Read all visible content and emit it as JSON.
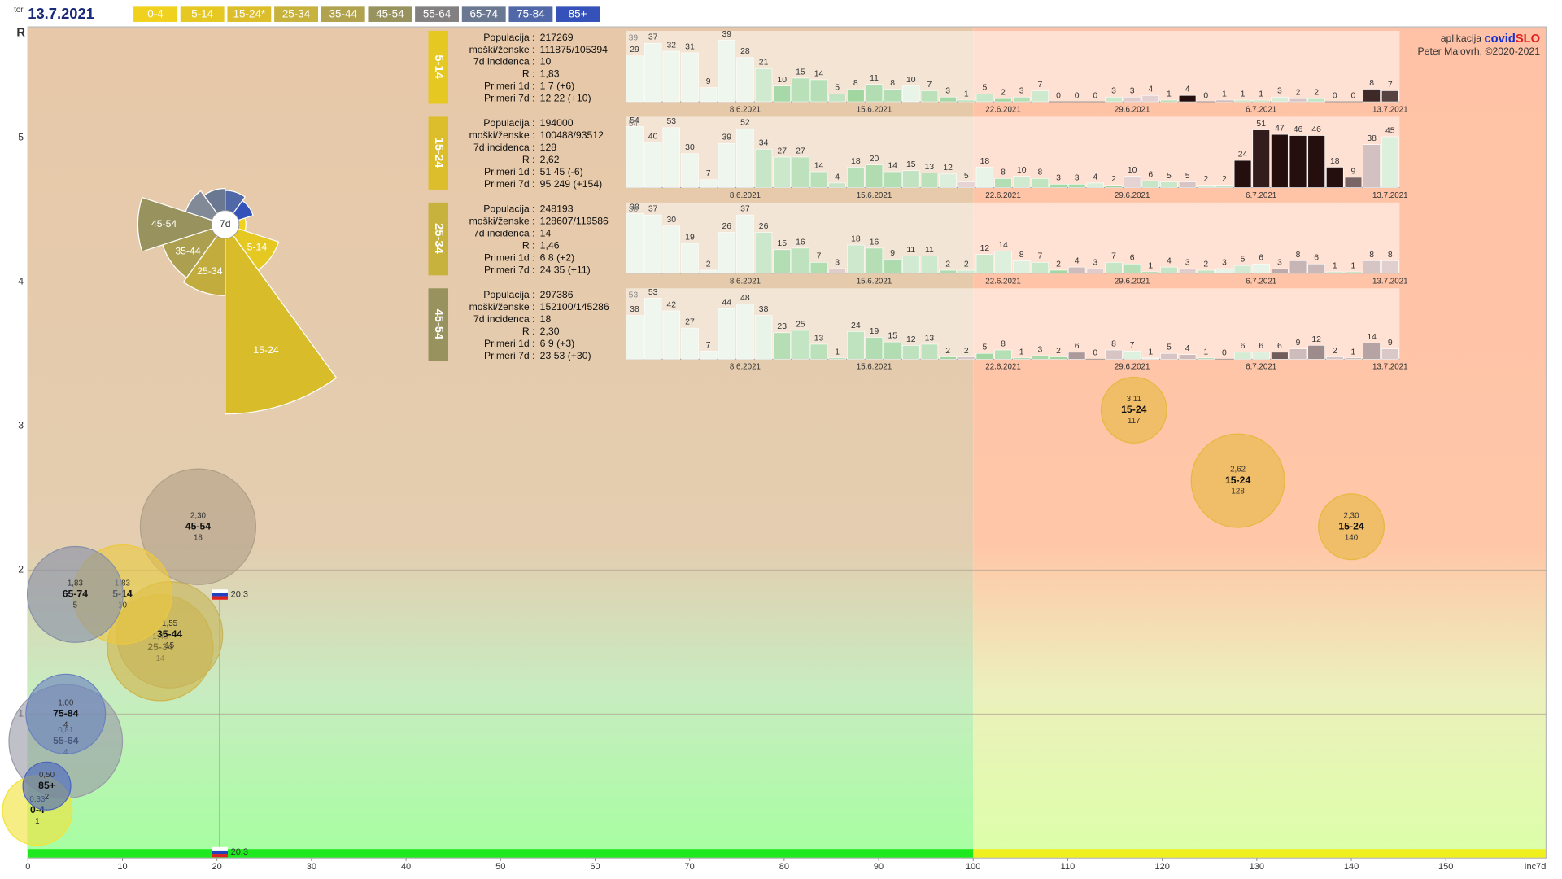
{
  "header": {
    "weekday": "tor",
    "date": "13.7.2021",
    "groups": [
      {
        "label": "0-4",
        "color": "#f0d21e"
      },
      {
        "label": "5-14",
        "color": "#e6c822"
      },
      {
        "label": "15-24*",
        "color": "#dcbe2c"
      },
      {
        "label": "25-34",
        "color": "#c8b23e"
      },
      {
        "label": "35-44",
        "color": "#b0a24e"
      },
      {
        "label": "45-54",
        "color": "#98925e"
      },
      {
        "label": "55-64",
        "color": "#828080"
      },
      {
        "label": "65-74",
        "color": "#6a7892"
      },
      {
        "label": "75-84",
        "color": "#5068a8"
      },
      {
        "label": "85+",
        "color": "#3452ba"
      }
    ]
  },
  "credits": {
    "prefix": "aplikacija",
    "name_a": "covid",
    "name_b": "SLO",
    "author": "Peter Malovrh, ©2020-2021"
  },
  "chart_data": [
    {
      "type": "bubble",
      "xlabel": "Inc7d",
      "ylabel": "R",
      "xlim": [
        0,
        160.6
      ],
      "ylim": [
        0,
        5.77
      ],
      "xticks": [
        0,
        10,
        20,
        30,
        40,
        50,
        60,
        70,
        80,
        90,
        100,
        110,
        120,
        130,
        140,
        150
      ],
      "yticks": [
        1,
        2,
        3,
        4,
        5
      ],
      "grid": true,
      "threshold": 100,
      "national": {
        "x": 20.3,
        "y": 1.83,
        "label": "20,3"
      },
      "series": [
        {
          "name": "45-54",
          "color": "#b0a088",
          "x": [
            18
          ],
          "values": [
            2.3
          ],
          "value_labels": [
            "2,30"
          ],
          "sizes": [
            297386
          ]
        },
        {
          "name": "55-64",
          "color": "#9a9aa8",
          "x": [
            4
          ],
          "values": [
            0.81
          ],
          "value_labels": [
            "0,81"
          ],
          "sizes": [
            287000
          ]
        },
        {
          "name": "25-34",
          "color": "#d0b448",
          "x": [
            14
          ],
          "values": [
            1.46
          ],
          "value_labels": [
            "1,46"
          ],
          "sizes": [
            248193
          ]
        },
        {
          "name": "35-44",
          "color": "#c8b458",
          "x": [
            15
          ],
          "values": [
            1.55
          ],
          "value_labels": [
            "1,55"
          ],
          "sizes": [
            250000
          ]
        },
        {
          "name": "5-14",
          "color": "#ecc840",
          "x": [
            10
          ],
          "values": [
            1.83
          ],
          "value_labels": [
            "1,83"
          ],
          "sizes": [
            217269
          ]
        },
        {
          "name": "65-74",
          "color": "#8890a8",
          "x": [
            5
          ],
          "values": [
            1.83
          ],
          "value_labels": [
            "1,83"
          ],
          "sizes": [
            204000
          ]
        },
        {
          "name": "75-84",
          "color": "#6a82c0",
          "x": [
            4
          ],
          "values": [
            1.0
          ],
          "value_labels": [
            "1,00"
          ],
          "sizes": [
            141000
          ]
        },
        {
          "name": "0-4",
          "color": "#f2e23a",
          "x": [
            1
          ],
          "values": [
            0.33
          ],
          "value_labels": [
            "0,33"
          ],
          "sizes": [
            108000
          ]
        },
        {
          "name": "85+",
          "color": "#4a66c0",
          "x": [
            2
          ],
          "values": [
            0.5
          ],
          "value_labels": [
            "0,50"
          ],
          "sizes": [
            51000
          ]
        },
        {
          "name": "15-24",
          "color": "#e6b840",
          "x": [
            117,
            128,
            140
          ],
          "values": [
            3.11,
            2.62,
            2.3
          ],
          "value_labels": [
            "3,11",
            "2,62",
            "2,30"
          ],
          "sizes": [
            96000,
            194000,
            96000
          ]
        }
      ]
    },
    {
      "type": "bar",
      "group": "5-14",
      "color": "#e6c822",
      "first_line_value": 39,
      "stats": [
        {
          "label": "Populacija :",
          "value": "217269"
        },
        {
          "label": "moški/ženske :",
          "value": "111875/105394"
        },
        {
          "label": "7d incidenca :",
          "value": "10"
        },
        {
          "label": "R :",
          "value": "1,83"
        },
        {
          "label": "Primeri 1d :",
          "value": "1 7 (+6)"
        },
        {
          "label": "Primeri 7d :",
          "value": "12 22 (+10)"
        }
      ],
      "ylim": [
        0,
        43
      ],
      "categories": [
        null,
        null,
        null,
        null,
        null,
        null,
        "8.6.2021",
        null,
        null,
        null,
        null,
        null,
        null,
        "15.6.2021",
        null,
        null,
        null,
        null,
        null,
        null,
        "22.6.2021",
        null,
        null,
        null,
        null,
        null,
        null,
        "29.6.2021",
        null,
        null,
        null,
        null,
        null,
        null,
        "6.7.2021",
        null,
        null,
        null,
        null,
        null,
        null,
        "13.7.2021"
      ],
      "values": [
        29,
        37,
        32,
        31,
        9,
        39,
        28,
        21,
        10,
        15,
        14,
        5,
        8,
        11,
        8,
        10,
        7,
        3,
        1,
        5,
        2,
        3,
        7,
        0,
        0,
        0,
        3,
        3,
        4,
        1,
        4,
        0,
        1,
        1,
        1,
        3,
        2,
        2,
        0,
        0,
        8,
        7
      ]
    },
    {
      "type": "bar",
      "group": "15-24",
      "color": "#dcbe2c",
      "first_line_value": 54,
      "stats": [
        {
          "label": "Populacija :",
          "value": "194000"
        },
        {
          "label": "moški/ženske :",
          "value": "100488/93512"
        },
        {
          "label": "7d incidenca :",
          "value": "128"
        },
        {
          "label": "R :",
          "value": "2,62"
        },
        {
          "label": "Primeri 1d :",
          "value": "51 45 (-6)"
        },
        {
          "label": "Primeri 7d :",
          "value": "95 249 (+154)"
        }
      ],
      "ylim": [
        0,
        60
      ],
      "categories": [
        null,
        null,
        null,
        null,
        null,
        null,
        "8.6.2021",
        null,
        null,
        null,
        null,
        null,
        null,
        "15.6.2021",
        null,
        null,
        null,
        null,
        null,
        null,
        "22.6.2021",
        null,
        null,
        null,
        null,
        null,
        null,
        "29.6.2021",
        null,
        null,
        null,
        null,
        null,
        null,
        "6.7.2021",
        null,
        null,
        null,
        null,
        null,
        null,
        "13.7.2021"
      ],
      "values": [
        54,
        40,
        53,
        30,
        7,
        39,
        52,
        34,
        27,
        27,
        14,
        4,
        18,
        20,
        14,
        15,
        13,
        12,
        5,
        18,
        8,
        10,
        8,
        3,
        3,
        4,
        2,
        10,
        6,
        5,
        5,
        2,
        2,
        24,
        51,
        47,
        46,
        46,
        18,
        9,
        38,
        45
      ]
    },
    {
      "type": "bar",
      "group": "25-34",
      "color": "#c8b23e",
      "first_line_value": 38,
      "stats": [
        {
          "label": "Populacija :",
          "value": "248193"
        },
        {
          "label": "moški/ženske :",
          "value": "128607/119586"
        },
        {
          "label": "7d incidenca :",
          "value": "14"
        },
        {
          "label": "R :",
          "value": "1,46"
        },
        {
          "label": "Primeri 1d :",
          "value": "6 8 (+2)"
        },
        {
          "label": "Primeri 7d :",
          "value": "24 35 (+11)"
        }
      ],
      "ylim": [
        0,
        43
      ],
      "categories": [
        null,
        null,
        null,
        null,
        null,
        null,
        "8.6.2021",
        null,
        null,
        null,
        null,
        null,
        null,
        "15.6.2021",
        null,
        null,
        null,
        null,
        null,
        null,
        "22.6.2021",
        null,
        null,
        null,
        null,
        null,
        null,
        "29.6.2021",
        null,
        null,
        null,
        null,
        null,
        null,
        "6.7.2021",
        null,
        null,
        null,
        null,
        null,
        null,
        "13.7.2021"
      ],
      "values": [
        38,
        37,
        30,
        19,
        2,
        26,
        37,
        26,
        15,
        16,
        7,
        3,
        18,
        16,
        9,
        11,
        11,
        2,
        2,
        12,
        14,
        8,
        7,
        2,
        4,
        3,
        7,
        6,
        1,
        4,
        3,
        2,
        3,
        5,
        6,
        3,
        8,
        6,
        1,
        1,
        8,
        8
      ]
    },
    {
      "type": "bar",
      "group": "45-54",
      "color": "#98925e",
      "first_line_value": 53,
      "stats": [
        {
          "label": "Populacija :",
          "value": "297386"
        },
        {
          "label": "moški/ženske :",
          "value": "152100/145286"
        },
        {
          "label": "7d incidenca :",
          "value": "18"
        },
        {
          "label": "R :",
          "value": "2,30"
        },
        {
          "label": "Primeri 1d :",
          "value": "6 9 (+3)"
        },
        {
          "label": "Primeri 7d :",
          "value": "23 53 (+30)"
        }
      ],
      "ylim": [
        0,
        59
      ],
      "categories": [
        null,
        null,
        null,
        null,
        null,
        null,
        "8.6.2021",
        null,
        null,
        null,
        null,
        null,
        null,
        "15.6.2021",
        null,
        null,
        null,
        null,
        null,
        null,
        "22.6.2021",
        null,
        null,
        null,
        null,
        null,
        null,
        "29.6.2021",
        null,
        null,
        null,
        null,
        null,
        null,
        "6.7.2021",
        null,
        null,
        null,
        null,
        null,
        null,
        "13.7.2021"
      ],
      "values": [
        38,
        53,
        42,
        27,
        7,
        44,
        48,
        38,
        23,
        25,
        13,
        1,
        24,
        19,
        15,
        12,
        13,
        2,
        2,
        5,
        8,
        1,
        3,
        2,
        6,
        0,
        8,
        7,
        1,
        5,
        4,
        1,
        0,
        6,
        6,
        6,
        9,
        12,
        2,
        1,
        14,
        9
      ]
    },
    {
      "type": "polar",
      "center_label": "7d",
      "categories": [
        null,
        "5-14",
        "15-24",
        "25-34",
        "35-44",
        "45-54",
        null,
        null,
        null,
        null
      ],
      "colors": [
        "#f0d21e",
        "#e6c822",
        "#d8bc2a",
        "#c2ac3e",
        "#aca050",
        "#98925e",
        "#828a98",
        "#6a7892",
        "#5068a8",
        "#3452ba"
      ],
      "values": [
        3,
        22,
        249,
        35,
        30,
        53,
        12,
        9,
        8,
        6
      ]
    }
  ]
}
